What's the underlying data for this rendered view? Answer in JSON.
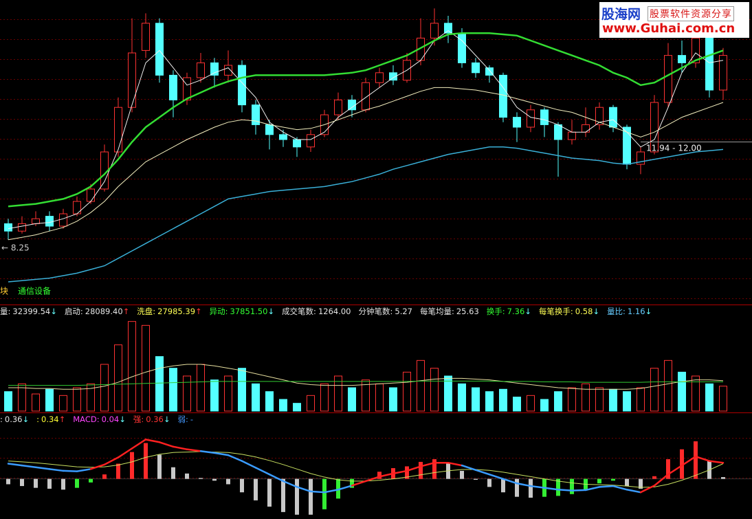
{
  "chart_data": [
    {
      "type": "candlestick",
      "ylim": [
        5.8,
        17.8
      ],
      "up_color": "#ff3232",
      "down_color": "#54ffff",
      "open": [
        8.9,
        8.6,
        8.9,
        9.2,
        8.8,
        9.3,
        9.8,
        10.3,
        11.8,
        13.6,
        15.9,
        17.0,
        14.9,
        13.9,
        14.8,
        15.4,
        14.9,
        15.3,
        13.7,
        12.9,
        12.5,
        12.3,
        12.0,
        12.5,
        13.3,
        13.9,
        13.5,
        14.6,
        15.0,
        14.7,
        15.5,
        16.4,
        17.0,
        16.6,
        15.4,
        15.2,
        14.9,
        13.2,
        12.8,
        13.5,
        12.9,
        12.3,
        12.6,
        12.9,
        13.6,
        12.8,
        11.3,
        11.8,
        13.8,
        15.7,
        15.4,
        16.4,
        14.3
      ],
      "high": [
        9.1,
        9.2,
        9.4,
        9.4,
        9.5,
        10.0,
        10.5,
        12.1,
        14.0,
        17.2,
        17.4,
        17.2,
        15.1,
        15.0,
        15.8,
        15.6,
        15.9,
        15.5,
        13.9,
        13.1,
        12.7,
        12.4,
        12.7,
        13.5,
        14.2,
        14.1,
        14.8,
        15.2,
        15.3,
        15.8,
        17.2,
        17.6,
        17.3,
        16.8,
        15.6,
        15.3,
        15.0,
        13.4,
        13.7,
        13.6,
        13.0,
        13.1,
        13.6,
        13.8,
        13.7,
        12.9,
        12.0,
        14.1,
        16.2,
        16.3,
        17.1,
        16.5,
        16.0
      ],
      "low": [
        8.25,
        8.5,
        8.8,
        8.6,
        8.7,
        9.2,
        9.7,
        10.2,
        11.6,
        13.4,
        15.6,
        14.6,
        13.2,
        13.7,
        14.6,
        14.4,
        14.6,
        13.4,
        12.5,
        11.9,
        12.0,
        11.6,
        11.8,
        12.4,
        13.1,
        13.2,
        13.4,
        14.4,
        14.5,
        14.6,
        15.3,
        16.1,
        16.2,
        15.2,
        14.8,
        14.6,
        13.0,
        12.2,
        12.6,
        12.4,
        10.8,
        12.1,
        12.4,
        12.7,
        12.6,
        11.1,
        10.9,
        11.7,
        13.6,
        15.0,
        15.2,
        14.0,
        13.9
      ],
      "close": [
        8.6,
        8.9,
        9.1,
        8.8,
        9.3,
        9.8,
        10.3,
        11.8,
        13.6,
        15.8,
        17.0,
        14.9,
        13.9,
        14.8,
        15.4,
        14.9,
        15.3,
        13.7,
        12.9,
        12.5,
        12.3,
        12.0,
        12.5,
        13.3,
        13.9,
        13.5,
        14.6,
        15.0,
        14.7,
        15.5,
        16.4,
        17.0,
        16.6,
        15.4,
        15.0,
        14.9,
        13.2,
        12.8,
        13.5,
        12.9,
        12.3,
        12.6,
        12.9,
        13.6,
        12.8,
        11.3,
        11.8,
        13.8,
        15.7,
        15.4,
        16.4,
        14.3,
        15.7
      ],
      "series": [
        {
          "color": "#f0f0f0",
          "width": 1,
          "values": [
            8.7,
            8.8,
            8.9,
            8.95,
            9.1,
            9.3,
            9.8,
            10.6,
            11.9,
            13.7,
            15.4,
            15.9,
            15.2,
            14.5,
            14.7,
            15.0,
            15.2,
            14.6,
            14.0,
            13.0,
            12.6,
            12.3,
            12.3,
            12.6,
            13.2,
            13.6,
            14.0,
            14.4,
            14.8,
            15.1,
            15.5,
            16.3,
            16.7,
            16.3,
            15.7,
            15.1,
            14.4,
            13.6,
            13.2,
            13.1,
            12.9,
            12.6,
            12.6,
            13.0,
            13.1,
            12.6,
            12.0,
            12.3,
            13.6,
            15.0,
            15.8,
            15.4,
            15.5
          ]
        },
        {
          "color": "#33dd33",
          "width": 2.5,
          "values": [
            9.6,
            9.65,
            9.7,
            9.8,
            9.9,
            10.1,
            10.4,
            10.9,
            11.5,
            12.2,
            12.8,
            13.2,
            13.6,
            13.95,
            14.2,
            14.45,
            14.65,
            14.8,
            14.9,
            14.9,
            14.9,
            14.9,
            14.9,
            14.9,
            14.95,
            15.0,
            15.1,
            15.3,
            15.5,
            15.7,
            16.0,
            16.3,
            16.55,
            16.6,
            16.6,
            16.6,
            16.55,
            16.5,
            16.3,
            16.1,
            15.9,
            15.7,
            15.5,
            15.3,
            15.0,
            14.8,
            14.5,
            14.6,
            14.9,
            15.2,
            15.5,
            15.7,
            15.9
          ]
        },
        {
          "color": "#f5f0c0",
          "width": 1,
          "values": [
            8.25,
            8.35,
            8.45,
            8.6,
            8.75,
            9.0,
            9.35,
            9.8,
            10.4,
            10.9,
            11.4,
            11.7,
            12.0,
            12.3,
            12.55,
            12.8,
            13.0,
            13.1,
            13.05,
            12.9,
            12.8,
            12.7,
            12.75,
            12.9,
            13.1,
            13.3,
            13.5,
            13.65,
            13.85,
            14.05,
            14.25,
            14.4,
            14.4,
            14.35,
            14.3,
            14.2,
            14.1,
            13.95,
            13.8,
            13.65,
            13.5,
            13.4,
            13.2,
            13.0,
            12.8,
            12.6,
            12.4,
            12.6,
            12.9,
            13.2,
            13.4,
            13.6,
            13.8
          ]
        },
        {
          "color": "#3ab0d8",
          "width": 1.5,
          "values": [
            6.55,
            6.6,
            6.65,
            6.7,
            6.8,
            6.9,
            7.05,
            7.2,
            7.5,
            7.8,
            8.1,
            8.4,
            8.7,
            9.0,
            9.3,
            9.6,
            9.9,
            10.0,
            10.1,
            10.2,
            10.25,
            10.3,
            10.35,
            10.4,
            10.5,
            10.6,
            10.75,
            10.9,
            11.1,
            11.25,
            11.4,
            11.55,
            11.7,
            11.8,
            11.9,
            12.0,
            12.0,
            11.95,
            11.85,
            11.75,
            11.65,
            11.55,
            11.5,
            11.45,
            11.35,
            11.3,
            11.4,
            11.5,
            11.6,
            11.7,
            11.8,
            11.85,
            11.9
          ]
        }
      ],
      "annotations": [
        "← 8.25",
        "11.94 - 12.00"
      ]
    },
    {
      "type": "bar",
      "ylim": [
        0,
        120000
      ],
      "values": [
        25000,
        35000,
        22000,
        28000,
        20000,
        30000,
        35000,
        60000,
        85000,
        115000,
        110000,
        70000,
        55000,
        45000,
        60000,
        40000,
        45000,
        55000,
        35000,
        25000,
        15000,
        10000,
        20000,
        35000,
        45000,
        30000,
        40000,
        35000,
        30000,
        50000,
        65000,
        55000,
        45000,
        35000,
        30000,
        25000,
        28000,
        18000,
        20000,
        15000,
        25000,
        30000,
        35000,
        30000,
        28000,
        25000,
        30000,
        55000,
        65000,
        50000,
        45000,
        35000,
        32000
      ],
      "series": [
        {
          "color": "#e8e0a0",
          "width": 1,
          "values": [
            30000,
            30000,
            29000,
            29000,
            28000,
            28000,
            29000,
            32000,
            37000,
            44000,
            50000,
            55000,
            58000,
            60000,
            60000,
            58000,
            55000,
            52000,
            48000,
            44000,
            40000,
            36000,
            34000,
            33000,
            33000,
            33000,
            34000,
            35000,
            36000,
            37000,
            39000,
            41000,
            42000,
            42000,
            41000,
            40000,
            38000,
            36000,
            34000,
            32000,
            30000,
            29000,
            28000,
            28000,
            28000,
            28000,
            29000,
            32000,
            35000,
            38000,
            40000,
            40000,
            39000
          ]
        },
        {
          "color": "#33cc33",
          "width": 1,
          "values": [
            33000,
            33000,
            33000,
            33000,
            33000,
            33000,
            33500,
            34000,
            34500,
            35000,
            35500,
            36000,
            36500,
            37000,
            37500,
            38000,
            38000,
            38000,
            38000,
            38000,
            38000,
            38000,
            38000,
            38000,
            38000,
            38000,
            38000,
            38000,
            38000,
            38000,
            38500,
            38500,
            38500,
            38500,
            38500,
            38500,
            38000,
            38000,
            38000,
            37500,
            37500,
            37500,
            37000,
            37000,
            37000,
            37000,
            37000,
            37500,
            37500,
            37500,
            37500,
            37500,
            37500
          ]
        }
      ]
    },
    {
      "type": "macd",
      "ylim": [
        -0.85,
        1.3
      ],
      "rise_color": "#ff2a2a",
      "recover_color": "#33ee33",
      "fade_color": "#c8c8c8",
      "values": [
        -0.12,
        -0.16,
        -0.2,
        -0.22,
        -0.24,
        -0.2,
        -0.08,
        0.1,
        0.34,
        0.6,
        0.8,
        0.54,
        0.26,
        0.12,
        0.02,
        -0.04,
        -0.12,
        -0.3,
        -0.48,
        -0.62,
        -0.74,
        -0.8,
        -0.8,
        -0.68,
        -0.44,
        -0.2,
        0.0,
        0.16,
        0.24,
        0.28,
        0.38,
        0.44,
        0.36,
        0.18,
        -0.02,
        -0.18,
        -0.3,
        -0.4,
        -0.42,
        -0.4,
        -0.38,
        -0.34,
        -0.26,
        -0.1,
        -0.04,
        -0.16,
        -0.22,
        0.06,
        0.44,
        0.66,
        0.84,
        0.4,
        0.04
      ],
      "series": [
        {
          "above_color": "#ff2020",
          "below_color": "#3a9cff",
          "width": 2.5,
          "values": [
            0.34,
            0.3,
            0.26,
            0.22,
            0.18,
            0.17,
            0.22,
            0.32,
            0.48,
            0.68,
            0.88,
            0.82,
            0.72,
            0.66,
            0.62,
            0.58,
            0.53,
            0.4,
            0.25,
            0.1,
            -0.05,
            -0.18,
            -0.28,
            -0.3,
            -0.24,
            -0.15,
            -0.05,
            0.05,
            0.12,
            0.18,
            0.28,
            0.36,
            0.36,
            0.3,
            0.2,
            0.1,
            0.0,
            -0.1,
            -0.16,
            -0.2,
            -0.24,
            -0.26,
            -0.25,
            -0.18,
            -0.16,
            -0.24,
            -0.3,
            -0.15,
            0.1,
            0.3,
            0.5,
            0.4,
            0.36
          ]
        },
        {
          "color": "#c8e060",
          "width": 1,
          "values": [
            0.4,
            0.38,
            0.36,
            0.33,
            0.3,
            0.27,
            0.26,
            0.27,
            0.31,
            0.38,
            0.48,
            0.55,
            0.59,
            0.6,
            0.61,
            0.6,
            0.59,
            0.55,
            0.49,
            0.41,
            0.32,
            0.22,
            0.12,
            0.04,
            -0.02,
            -0.05,
            -0.05,
            -0.03,
            0.0,
            0.04,
            0.09,
            0.14,
            0.18,
            0.21,
            0.21,
            0.19,
            0.15,
            0.1,
            0.05,
            0.0,
            -0.05,
            -0.09,
            -0.12,
            -0.13,
            -0.14,
            -0.16,
            -0.19,
            -0.18,
            -0.12,
            -0.03,
            0.08,
            0.2,
            0.34
          ]
        }
      ]
    }
  ],
  "sector": {
    "label": "块",
    "name": "通信设备"
  },
  "volume_indicators": [
    {
      "name": "量:",
      "value": "32399.54",
      "arrow": "↓",
      "color": "#e6e6e6",
      "arrow_color": "#66ffff"
    },
    {
      "name": "启动:",
      "value": "28089.40",
      "arrow": "↑",
      "color": "#e6e6e6",
      "arrow_color": "#ff3333"
    },
    {
      "name": "洗盘:",
      "value": "27985.39",
      "arrow": "↑",
      "color": "#ffff55",
      "arrow_color": "#ff3333"
    },
    {
      "name": "异动:",
      "value": "37851.50",
      "arrow": "↓",
      "color": "#33ff33",
      "arrow_color": "#66ffff"
    },
    {
      "name": "成交笔数:",
      "value": "1264.00",
      "color": "#e6e6e6"
    },
    {
      "name": "分钟笔数:",
      "value": "5.27",
      "color": "#e6e6e6"
    },
    {
      "name": "每笔均量:",
      "value": "25.63",
      "color": "#e6e6e6"
    },
    {
      "name": "换手:",
      "value": "7.36",
      "arrow": "↓",
      "color": "#33ff33",
      "arrow_color": "#66ffff"
    },
    {
      "name": "每笔换手:",
      "value": "0.58",
      "arrow": "↓",
      "color": "#ffff55",
      "arrow_color": "#66ffff"
    },
    {
      "name": "量比:",
      "value": "1.16",
      "arrow": "↓",
      "color": "#66ccff",
      "arrow_color": "#66ffff"
    }
  ],
  "macd_indicators": [
    {
      "name": ":",
      "value": "0.36",
      "arrow": "↓",
      "color": "#e6e6e6",
      "arrow_color": "#66ffff"
    },
    {
      "name": ":",
      "value": "0.34",
      "arrow": "↑",
      "color": "#ffff33",
      "arrow_color": "#ff3333"
    },
    {
      "name": "MACD:",
      "value": "0.04",
      "arrow": "↓",
      "color": "#ff44ff",
      "arrow_color": "#66ffff"
    },
    {
      "name": "强:",
      "value": "0.36",
      "arrow": "↓",
      "color": "#ff3333",
      "arrow_color": "#66ffff"
    },
    {
      "name": "弱:",
      "value": "-",
      "color": "#4499ff"
    }
  ],
  "logo": {
    "brand": "股海网",
    "slogan": "股票软件资源分享",
    "url": "www.Guhai.com.cn"
  }
}
